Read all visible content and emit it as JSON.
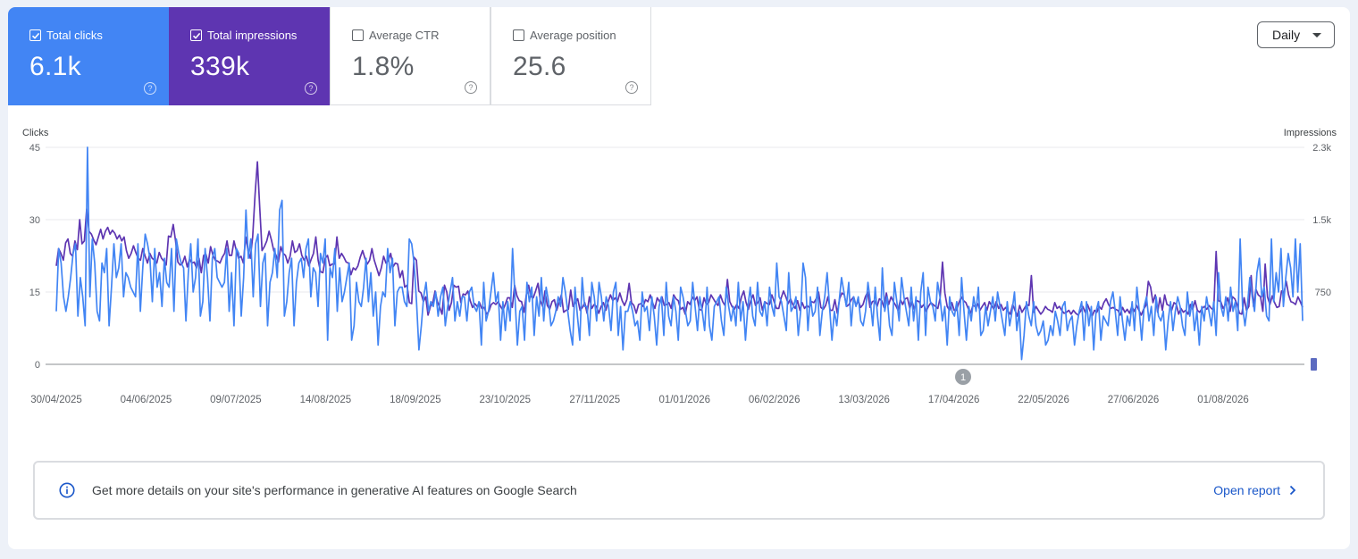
{
  "metrics": {
    "clicks": {
      "label": "Total clicks",
      "value": "6.1k",
      "checked": true,
      "color": "#4285f4"
    },
    "impressions": {
      "label": "Total impressions",
      "value": "339k",
      "checked": true,
      "color": "#5e35b1"
    },
    "ctr": {
      "label": "Average CTR",
      "value": "1.8%",
      "checked": false
    },
    "position": {
      "label": "Average position",
      "value": "25.6",
      "checked": false
    }
  },
  "help_glyph": "?",
  "period_select": {
    "selected": "Daily"
  },
  "annotation_marker": "1",
  "banner": {
    "message": "Get more details on your site's performance in generative AI features on Google Search",
    "link": "Open report"
  },
  "chart_data": {
    "type": "line",
    "left_axis": {
      "label": "Clicks",
      "ticks": [
        "0",
        "15",
        "30",
        "45"
      ],
      "range": [
        0,
        45
      ]
    },
    "right_axis": {
      "label": "Impressions",
      "ticks": [
        "",
        "750",
        "1.5k",
        "2.3k"
      ],
      "range": [
        0,
        2250
      ]
    },
    "x_ticks": [
      "30/04/2025",
      "04/06/2025",
      "09/07/2025",
      "14/08/2025",
      "18/09/2025",
      "23/10/2025",
      "27/11/2025",
      "01/01/2026",
      "06/02/2026",
      "13/03/2026",
      "17/04/2026",
      "22/05/2026",
      "27/06/2026",
      "01/08/2026"
    ],
    "grid": true,
    "series": [
      {
        "name": "Clicks",
        "axis": "left",
        "color": "#4285f4",
        "values": [
          11,
          24,
          21,
          14,
          11,
          14,
          18,
          23,
          25,
          10,
          18,
          14,
          8,
          45,
          14,
          26,
          21,
          11,
          9,
          21,
          19,
          24,
          8,
          16,
          25,
          18,
          20,
          25,
          14,
          19,
          18,
          16,
          15,
          14,
          25,
          11,
          20,
          27,
          25,
          22,
          13,
          24,
          16,
          19,
          12,
          22,
          17,
          16,
          24,
          11,
          26,
          23,
          21,
          20,
          9,
          19,
          25,
          15,
          18,
          26,
          10,
          13,
          24,
          18,
          9,
          22,
          24,
          18,
          17,
          16,
          17,
          24,
          11,
          19,
          8,
          24,
          23,
          10,
          18,
          32,
          22,
          26,
          14,
          25,
          27,
          12,
          21,
          23,
          8,
          17,
          19,
          24,
          18,
          32,
          34,
          10,
          13,
          19,
          22,
          8,
          17,
          21,
          22,
          18,
          24,
          26,
          14,
          20,
          19,
          12,
          23,
          21,
          26,
          5,
          20,
          18,
          24,
          11,
          20,
          13,
          15,
          18,
          21,
          5,
          8,
          17,
          13,
          12,
          16,
          22,
          13,
          19,
          10,
          15,
          4,
          12,
          15,
          14,
          24,
          19,
          22,
          8,
          15,
          16,
          16,
          13,
          12,
          26,
          25,
          21,
          13,
          3,
          8,
          14,
          17,
          11,
          13,
          12,
          15,
          10,
          14,
          16,
          8,
          12,
          15,
          18,
          9,
          13,
          10,
          14,
          14,
          9,
          15,
          16,
          12,
          11,
          13,
          4,
          17,
          9,
          11,
          15,
          19,
          13,
          15,
          5,
          13,
          7,
          13,
          9,
          24,
          14,
          4,
          11,
          12,
          5,
          17,
          13,
          16,
          6,
          14,
          10,
          18,
          9,
          16,
          13,
          8,
          9,
          11,
          14,
          12,
          18,
          15,
          11,
          7,
          4,
          16,
          10,
          5,
          18,
          12,
          12,
          6,
          17,
          14,
          9,
          17,
          14,
          9,
          14,
          12,
          7,
          15,
          17,
          6,
          12,
          3,
          11,
          11,
          13,
          11,
          8,
          9,
          5,
          15,
          11,
          12,
          7,
          14,
          10,
          4,
          12,
          14,
          6,
          17,
          10,
          8,
          14,
          11,
          5,
          16,
          14,
          11,
          8,
          9,
          17,
          12,
          7,
          14,
          11,
          7,
          16,
          8,
          5,
          12,
          13,
          14,
          9,
          6,
          16,
          12,
          9,
          12,
          8,
          17,
          9,
          13,
          5,
          12,
          16,
          10,
          8,
          17,
          11,
          10,
          13,
          8,
          16,
          12,
          10,
          21,
          14,
          13,
          10,
          7,
          19,
          11,
          12,
          14,
          6,
          11,
          21,
          18,
          7,
          14,
          10,
          11,
          16,
          6,
          11,
          14,
          19,
          12,
          5,
          11,
          8,
          13,
          18,
          15,
          12,
          17,
          8,
          14,
          12,
          14,
          9,
          8,
          11,
          17,
          13,
          8,
          16,
          10,
          5,
          20,
          11,
          14,
          8,
          6,
          17,
          13,
          9,
          18,
          14,
          11,
          8,
          16,
          9,
          14,
          5,
          15,
          19,
          6,
          16,
          13,
          12,
          9,
          17,
          14,
          9,
          12,
          4,
          14,
          11,
          10,
          13,
          6,
          18,
          11,
          5,
          12,
          9,
          14,
          11,
          16,
          6,
          7,
          12,
          8,
          11,
          14,
          9,
          15,
          12,
          9,
          6,
          13,
          8,
          11,
          15,
          7,
          11,
          1,
          6,
          13,
          10,
          8,
          13,
          8,
          6,
          7,
          9,
          4,
          5,
          8,
          6,
          11,
          9,
          6,
          12,
          13,
          7,
          9,
          10,
          4,
          8,
          11,
          13,
          5,
          13,
          8,
          12,
          3,
          11,
          13,
          5,
          10,
          9,
          8,
          13,
          15,
          11,
          6,
          14,
          9,
          5,
          10,
          8,
          13,
          7,
          16,
          11,
          5,
          12,
          14,
          9,
          12,
          6,
          14,
          10,
          9,
          11,
          3,
          9,
          13,
          7,
          11,
          14,
          12,
          8,
          6,
          15,
          10,
          13,
          7,
          11,
          4,
          12,
          9,
          14,
          11,
          8,
          13,
          6,
          19,
          12,
          10,
          14,
          9,
          16,
          11,
          13,
          7,
          26,
          12,
          8,
          12,
          18,
          14,
          11,
          19,
          22,
          14,
          16,
          10,
          9,
          26,
          13,
          19,
          15,
          24,
          12,
          18,
          23,
          20,
          14,
          26,
          15,
          25,
          9
        ]
      },
      {
        "name": "Impressions",
        "axis": "right",
        "color": "#5e35b1",
        "values": [
          1020,
          1200,
          1150,
          1080,
          1260,
          1300,
          1150,
          1120,
          1280,
          1190,
          1500,
          1250,
          1280,
          1610,
          1380,
          1350,
          1290,
          1240,
          1320,
          1400,
          1300,
          1380,
          1420,
          1350,
          1390,
          1360,
          1300,
          1340,
          1280,
          1320,
          1180,
          1100,
          1150,
          1230,
          1160,
          1100,
          1080,
          1200,
          1120,
          1050,
          1150,
          1100,
          1080,
          1050,
          1160,
          1100,
          1070,
          1030,
          1330,
          1320,
          1450,
          1280,
          1060,
          1030,
          1050,
          1120,
          1010,
          1090,
          1050,
          1060,
          1000,
          1100,
          950,
          1130,
          1140,
          1050,
          1220,
          1130,
          1080,
          1070,
          1050,
          1110,
          1150,
          1280,
          1130,
          1130,
          1280,
          1180,
          1100,
          1120,
          1050,
          1320,
          1180,
          1100,
          1320,
          1760,
          2100,
          1630,
          1180,
          1220,
          1280,
          1380,
          1290,
          1180,
          1130,
          1060,
          1220,
          1150,
          1130,
          1050,
          1120,
          1280,
          1160,
          1180,
          1250,
          1130,
          1080,
          1120,
          1020,
          1090,
          1150,
          1320,
          1080,
          960,
          950,
          1100,
          1130,
          1020,
          1040,
          1040,
          1320,
          1100,
          1150,
          1110,
          1060,
          1050,
          930,
          1000,
          980,
          1020,
          1110,
          1180,
          1100,
          1040,
          1080,
          1200,
          1080,
          1000,
          920,
          1000,
          1120,
          1050,
          1080,
          1150,
          1010,
          1050,
          1040,
          900,
          970,
          800,
          820,
          640,
          630,
          1110,
          1080,
          760,
          740,
          650,
          700,
          510,
          600,
          640,
          760,
          650,
          590,
          520,
          820,
          750,
          560,
          640,
          820,
          800,
          810,
          640,
          730,
          720,
          760,
          660,
          590,
          630,
          600,
          640,
          580,
          590,
          520,
          550,
          620,
          640,
          620,
          650,
          600,
          560,
          620,
          690,
          690,
          590,
          820,
          710,
          660,
          650,
          540,
          720,
          820,
          700,
          690,
          760,
          840,
          660,
          600,
          760,
          610,
          570,
          650,
          670,
          560,
          640,
          720,
          540,
          560,
          570,
          770,
          600,
          640,
          680,
          560,
          590,
          640,
          530,
          700,
          580,
          620,
          600,
          530,
          600,
          640,
          560,
          650,
          720,
          660,
          690,
          650,
          740,
          660,
          610,
          670,
          840,
          640,
          610,
          530,
          620,
          630,
          600,
          670,
          650,
          720,
          640,
          580,
          690,
          650,
          700,
          610,
          620,
          640,
          580,
          720,
          680,
          660,
          570,
          590,
          520,
          650,
          620,
          700,
          660,
          700,
          570,
          560,
          690,
          620,
          640,
          720,
          680,
          640,
          610,
          720,
          650,
          610,
          880,
          650,
          600,
          570,
          620,
          580,
          700,
          760,
          640,
          570,
          660,
          720,
          610,
          640,
          690,
          560,
          650,
          630,
          620,
          720,
          650,
          580,
          580,
          690,
          760,
          700,
          630,
          680,
          620,
          580,
          660,
          560,
          640,
          580,
          610,
          590,
          650,
          640,
          680,
          750,
          590,
          570,
          610,
          700,
          560,
          560,
          670,
          530,
          680,
          740,
          720,
          600,
          620,
          670,
          700,
          610,
          660,
          590,
          620,
          700,
          750,
          590,
          650,
          660,
          600,
          680,
          660,
          590,
          740,
          620,
          700,
          650,
          610,
          560,
          670,
          620,
          680,
          690,
          580,
          650,
          570,
          660,
          650,
          590,
          620,
          550,
          600,
          640,
          620,
          600,
          580,
          690,
          1060,
          740,
          600,
          560,
          640,
          560,
          560,
          640,
          700,
          660,
          640,
          580,
          530,
          610,
          600,
          630,
          560,
          600,
          640,
          560,
          650,
          610,
          570,
          650,
          580,
          620,
          560,
          590,
          550,
          520,
          620,
          560,
          500,
          610,
          540,
          580,
          620,
          610,
          920,
          540,
          600,
          560,
          520,
          550,
          600,
          570,
          560,
          540,
          640,
          580,
          600,
          560,
          530,
          540,
          560,
          520,
          560,
          530,
          510,
          550,
          600,
          540,
          620,
          560,
          500,
          560,
          540,
          600,
          570,
          640,
          680,
          620,
          580,
          590,
          570,
          560,
          510,
          590,
          540,
          570,
          530,
          600,
          550,
          610,
          560,
          510,
          570,
          610,
          860,
          800,
          640,
          720,
          540,
          690,
          560,
          720,
          620,
          610,
          560,
          640,
          620,
          520,
          580,
          540,
          560,
          520,
          620,
          570,
          660,
          560,
          540,
          580,
          600,
          570,
          610,
          580,
          560,
          1170,
          660,
          650,
          580,
          620,
          690,
          550,
          700,
          680,
          620,
          530,
          520,
          690,
          560,
          600,
          920,
          600,
          780,
          720,
          700,
          550,
          1040,
          700,
          620,
          710,
          640,
          590,
          600,
          760,
          740,
          860,
          720,
          650,
          640,
          620,
          700,
          650,
          590
        ]
      }
    ]
  }
}
